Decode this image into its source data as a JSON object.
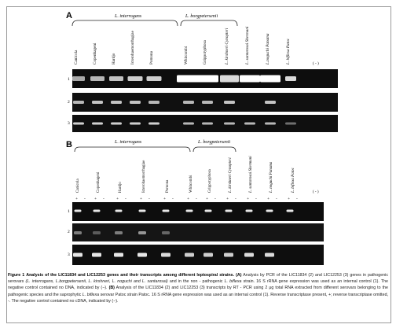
{
  "panel_a": {
    "label": "A",
    "group_left": "L. interrogans",
    "group_right": "L. borgpetersenii",
    "lanes": [
      "Canicola",
      "Copenhageni",
      "Hardjo",
      "Icterohaemorrhagiae",
      "Pomona",
      "Whitcombi",
      "Grippotyphosa",
      "L. kirshneri Cynopteri",
      "L. santarosai Shermani",
      "L.noguchi Panama",
      "L. biflexa Patoc",
      "( - )"
    ],
    "rows": [
      "1",
      "2",
      "3"
    ]
  },
  "panel_b": {
    "label": "B",
    "group_left": "L. interrogans",
    "group_right": "L. borgpetersenii",
    "lanes": [
      "Canicola",
      "Copenhageni",
      "Hardjo",
      "Icterohaemorrhagiae",
      "Pomona",
      "Whitcombi",
      "Grippotyphosa",
      "L. kirshneri Cynopteri",
      "L. santarosai Shermani",
      "L. noguchi Panama",
      "L. biflexa Patoc",
      "( - )"
    ],
    "signs": [
      "+",
      "-"
    ],
    "rows": [
      "1",
      "2",
      "3"
    ]
  },
  "caption": {
    "figure_label": "Figure 1",
    "title": "Analysis of the LIC11834 and LIC12253 genes and their transcripts among different leptospiral strains.",
    "part_a_label": "(A)",
    "part_a_text": "Analysis by PCR of the LIC11834 (2) and LIC12253 (3) genes in pathogenic serovars",
    "part_a_species": "(L. interrogans, L.borgpetersenii, L. kirshneri, L. noguchi and L. santarosai)",
    "part_a_text2": "and in the non - pathogenic",
    "part_a_species2": "L. biflexa",
    "part_a_text3": "strain. 16 S rRNA gene expression was used as an internal control (1). The negative control contained no DNA, indicated by (−).",
    "part_b_label": "(B)",
    "part_b_text": "Analysis of the LIC11834 (2) and LIC12253 (3) transcripts by RT - PCR using 2 μg total RNA extracted from different serovars belonging to the pathogenic species and the saprophytic",
    "part_b_species": "L. biflexa",
    "part_b_text2": "serovar Patoc strain Patoc. 16 S rRNA gene expression was used as an internal control (1). Reverse transcriptase present, +; reverse transcriptase omitted, -. The negative control contained no cDNA, indicated by (−)."
  },
  "colors": {
    "gel": "#0d0d0d",
    "band": "#ffffff",
    "frame": "#9a9a9a"
  }
}
